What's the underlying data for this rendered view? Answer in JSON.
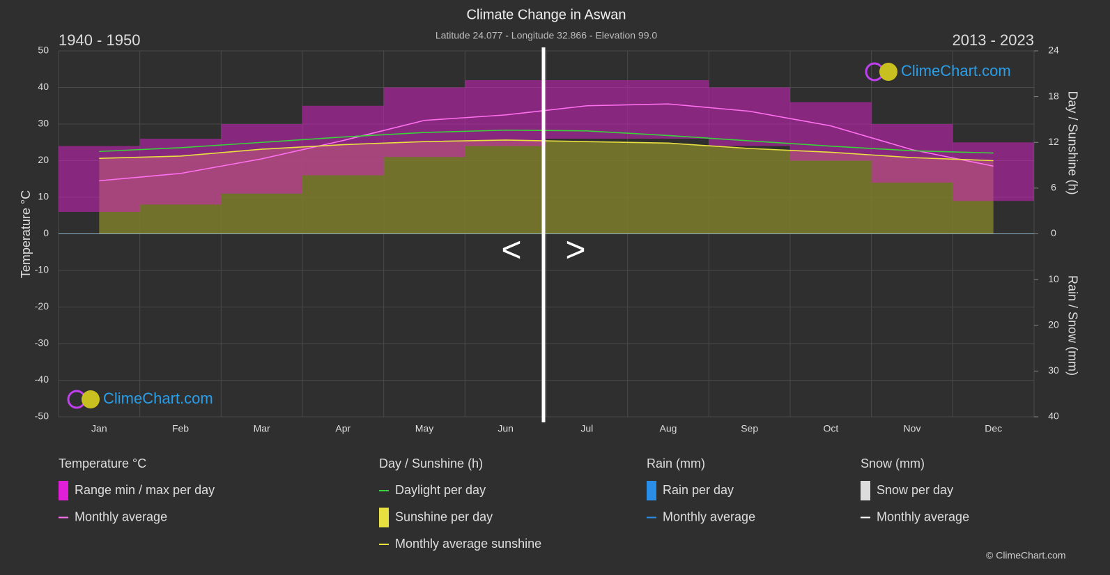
{
  "chart_data": {
    "type": "climate",
    "title": "Climate Change in Aswan",
    "subtitle": "Latitude 24.077 - Longitude 32.866 - Elevation 99.0",
    "period_left": "1940 - 1950",
    "period_right": "2013 - 2023",
    "nav": [
      "<",
      ">"
    ],
    "watermark": "ClimeChart.com",
    "copyright": "© ClimeChart.com",
    "categories": [
      "Jan",
      "Feb",
      "Mar",
      "Apr",
      "May",
      "Jun",
      "Jul",
      "Aug",
      "Sep",
      "Oct",
      "Nov",
      "Dec"
    ],
    "y_label": "Temperature °C",
    "y2_label": "Day / Sunshine (h)",
    "y3_label": "Rain / Snow (mm)",
    "ylim": [
      -50,
      50
    ],
    "yticks": [
      -50,
      -40,
      -30,
      -20,
      -10,
      0,
      10,
      20,
      30,
      40,
      50
    ],
    "y2lim": [
      0,
      24
    ],
    "y2ticks": [
      0,
      6,
      12,
      18,
      24
    ],
    "y3lim": [
      0,
      40
    ],
    "y3ticks": [
      10,
      20,
      30,
      40
    ],
    "grid": true,
    "temp_range": {
      "color": "#d020c0",
      "low": [
        6,
        8,
        11,
        16,
        21,
        24,
        26,
        26,
        24,
        20,
        14,
        9
      ],
      "high": [
        24,
        26,
        30,
        35,
        40,
        42,
        42,
        42,
        40,
        36,
        30,
        25
      ]
    },
    "series": [
      {
        "kind": "temp",
        "color": "#ff70f0",
        "values": [
          14.5,
          16.5,
          20.5,
          25.5,
          31,
          32.5,
          35,
          35.5,
          33.5,
          29.5,
          23,
          18.5
        ]
      },
      {
        "kind": "daylight",
        "axis": "y2",
        "color": "#3ad13a",
        "values": [
          10.8,
          11.3,
          12,
          12.7,
          13.3,
          13.6,
          13.5,
          12.9,
          12.2,
          11.5,
          10.9,
          10.6
        ]
      },
      {
        "kind": "sunshine",
        "axis": "y2",
        "color": "#e8e040",
        "fill": "#7d7d2c",
        "values": [
          9.9,
          10.2,
          11.1,
          11.7,
          12.1,
          12.3,
          12.1,
          11.9,
          11.2,
          10.7,
          10.0,
          9.6
        ]
      }
    ],
    "legend": [
      {
        "title": "Temperature °C",
        "items": [
          {
            "label": "Range min / max per day",
            "icon": "box",
            "color": "#e020d8"
          },
          {
            "label": "Monthly average",
            "icon": "line",
            "color": "#ff70f0"
          }
        ]
      },
      {
        "title": "Day / Sunshine (h)",
        "items": [
          {
            "label": "Daylight per day",
            "icon": "line",
            "color": "#3ad13a"
          },
          {
            "label": "Sunshine per day",
            "icon": "box",
            "color": "#e8e040"
          },
          {
            "label": "Monthly average sunshine",
            "icon": "line",
            "color": "#e8e040"
          }
        ]
      },
      {
        "title": "Rain (mm)",
        "items": [
          {
            "label": "Rain per day",
            "icon": "box",
            "color": "#2a8ee8"
          },
          {
            "label": "Monthly average",
            "icon": "line",
            "color": "#2a8ee8"
          }
        ]
      },
      {
        "title": "Snow (mm)",
        "items": [
          {
            "label": "Snow per day",
            "icon": "box",
            "color": "#dddddd"
          },
          {
            "label": "Monthly average",
            "icon": "line",
            "color": "#ffffff"
          }
        ]
      }
    ]
  }
}
